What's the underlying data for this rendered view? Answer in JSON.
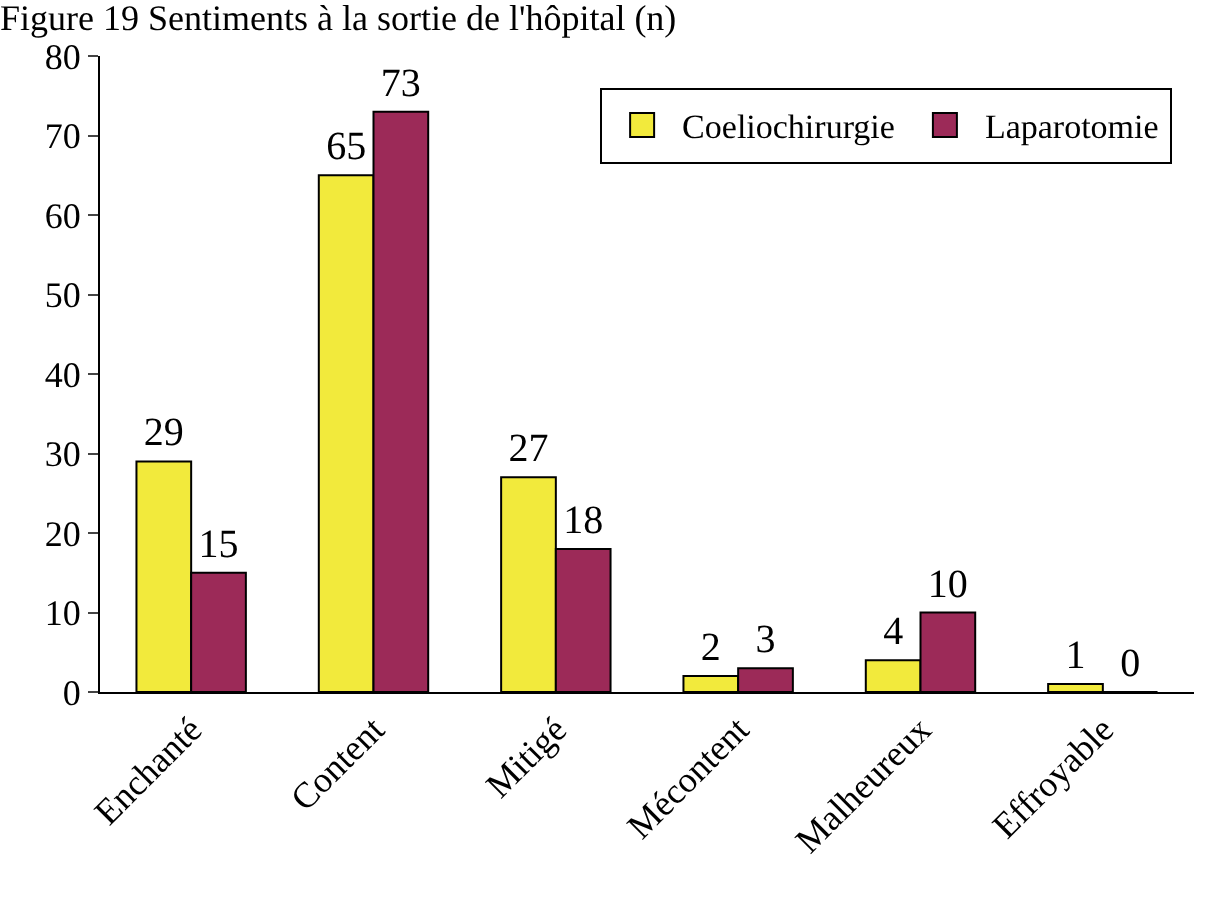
{
  "chart_data": {
    "type": "bar",
    "title": "Figure 19 Sentiments à la sortie de l'hôpital (n)",
    "categories": [
      "Enchanté",
      "Content",
      "Mitigé",
      "Mécontent",
      "Malheureux",
      "Effroyable"
    ],
    "series": [
      {
        "name": "Coeliochirurgie",
        "color": "#f2ea3c",
        "values": [
          29,
          65,
          27,
          2,
          4,
          1
        ]
      },
      {
        "name": "Laparotomie",
        "color": "#9c2a58",
        "values": [
          15,
          73,
          18,
          3,
          10,
          0
        ]
      }
    ],
    "ylim": [
      0,
      80
    ],
    "yticks": [
      0,
      10,
      20,
      30,
      40,
      50,
      60,
      70,
      80
    ],
    "grid": false,
    "legend": "top right",
    "data_labels": true
  }
}
